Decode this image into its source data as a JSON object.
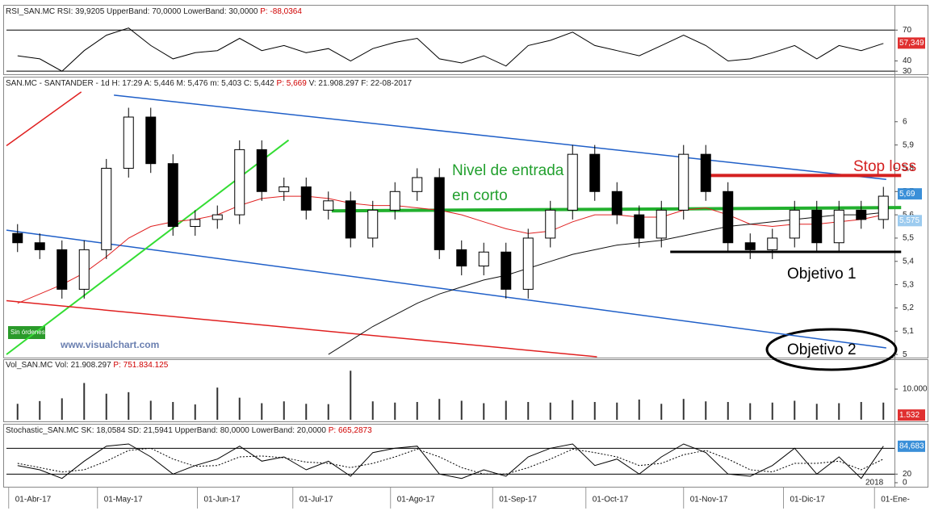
{
  "chart_data": [
    {
      "type": "line",
      "title": "RSI_SAN.MC  RSI: 39,9205  UpperBand: 70,0000  LowerBand: 30,0000",
      "title_p": "P: -88,0364",
      "xlim": [
        0,
        40
      ],
      "ylim": [
        27,
        82
      ],
      "yticks": [
        70,
        40,
        30
      ],
      "bands": [
        70,
        30
      ],
      "marker": {
        "value": 57.349,
        "label": "57,349",
        "color": "#e03030"
      },
      "series": [
        {
          "name": "RSI",
          "color": "#000000",
          "values": [
            45,
            42,
            30,
            50,
            65,
            72,
            55,
            42,
            48,
            50,
            62,
            50,
            55,
            48,
            52,
            40,
            52,
            58,
            62,
            42,
            38,
            45,
            35,
            55,
            60,
            68,
            55,
            50,
            45,
            55,
            65,
            55,
            40,
            42,
            48,
            55,
            42,
            55,
            50,
            57
          ]
        }
      ]
    },
    {
      "type": "candlestick",
      "title": "SAN.MC - SANTANDER - 1d H: 17:29 A: 5,446 M: 5,476 m: 5,403 C: 5,442",
      "title_p": "P: 5,669",
      "title_tail": "V: 21.908.297 F: 22-08-2017",
      "xlim": [
        0,
        40
      ],
      "ylim": [
        4.99,
        6.19
      ],
      "yticks": [
        6,
        {
          "value": 5.9,
          "label": "5,9"
        },
        {
          "value": 5.8,
          "label": "5,8"
        },
        {
          "value": 5.7,
          "label": "5,7"
        },
        {
          "value": 5.6,
          "label": "5,6"
        },
        {
          "value": 5.5,
          "label": "5,5"
        },
        {
          "value": 5.4,
          "label": "5,4"
        },
        {
          "value": 5.3,
          "label": "5,3"
        },
        {
          "value": 5.2,
          "label": "5,2"
        },
        {
          "value": 5.1,
          "label": "5,1"
        },
        5
      ],
      "open": [
        5.52,
        5.48,
        5.45,
        5.28,
        5.45,
        5.8,
        6.02,
        5.82,
        5.55,
        5.58,
        5.6,
        5.88,
        5.7,
        5.72,
        5.62,
        5.66,
        5.5,
        5.62,
        5.7,
        5.76,
        5.45,
        5.38,
        5.44,
        5.28,
        5.5,
        5.62,
        5.86,
        5.7,
        5.6,
        5.5,
        5.62,
        5.86,
        5.7,
        5.48,
        5.45,
        5.5,
        5.62,
        5.48,
        5.62,
        5.58
      ],
      "high": [
        5.56,
        5.52,
        5.49,
        5.49,
        5.84,
        6.06,
        6.06,
        5.86,
        5.62,
        5.64,
        5.92,
        5.92,
        5.76,
        5.76,
        5.7,
        5.7,
        5.66,
        5.74,
        5.8,
        5.8,
        5.49,
        5.48,
        5.48,
        5.54,
        5.66,
        5.9,
        5.9,
        5.74,
        5.64,
        5.66,
        5.9,
        5.9,
        5.74,
        5.52,
        5.54,
        5.66,
        5.66,
        5.66,
        5.66,
        5.72
      ],
      "low": [
        5.44,
        5.41,
        5.24,
        5.24,
        5.41,
        5.76,
        5.78,
        5.51,
        5.51,
        5.54,
        5.56,
        5.66,
        5.66,
        5.58,
        5.58,
        5.46,
        5.46,
        5.58,
        5.66,
        5.41,
        5.34,
        5.34,
        5.24,
        5.24,
        5.46,
        5.58,
        5.66,
        5.56,
        5.46,
        5.46,
        5.58,
        5.66,
        5.44,
        5.41,
        5.41,
        5.46,
        5.44,
        5.44,
        5.54,
        5.54
      ],
      "close": [
        5.48,
        5.45,
        5.28,
        5.45,
        5.8,
        6.02,
        5.82,
        5.55,
        5.58,
        5.6,
        5.88,
        5.7,
        5.72,
        5.62,
        5.66,
        5.5,
        5.62,
        5.7,
        5.76,
        5.45,
        5.38,
        5.44,
        5.28,
        5.5,
        5.62,
        5.86,
        5.7,
        5.6,
        5.5,
        5.62,
        5.86,
        5.7,
        5.48,
        5.45,
        5.5,
        5.62,
        5.48,
        5.62,
        5.58,
        5.68
      ],
      "averages": [
        {
          "color": "#e02020",
          "values": [
            5.22,
            5.26,
            5.3,
            5.35,
            5.42,
            5.5,
            5.55,
            5.57,
            5.58,
            5.6,
            5.64,
            5.67,
            5.68,
            5.68,
            5.67,
            5.65,
            5.64,
            5.64,
            5.63,
            5.62,
            5.6,
            5.57,
            5.54,
            5.52,
            5.53,
            5.57,
            5.6,
            5.6,
            5.59,
            5.59,
            5.62,
            5.63,
            5.6,
            5.56,
            5.55,
            5.56,
            5.56,
            5.57,
            5.58,
            5.6
          ]
        },
        {
          "color": "#111111",
          "values": [
            null,
            null,
            null,
            null,
            null,
            null,
            null,
            null,
            null,
            null,
            null,
            null,
            null,
            null,
            5.0,
            5.06,
            5.12,
            5.17,
            5.22,
            5.26,
            5.29,
            5.32,
            5.34,
            5.37,
            5.4,
            5.43,
            5.45,
            5.47,
            5.48,
            5.49,
            5.51,
            5.53,
            5.55,
            5.56,
            5.57,
            5.58,
            5.59,
            5.6,
            5.6,
            5.61
          ]
        }
      ],
      "lines": [
        {
          "color": "#1f5fc8",
          "width": 1.5,
          "points": [
            [
              4.84,
              6.114
            ],
            [
              39.63,
              5.752
            ]
          ]
        },
        {
          "color": "#1f5fc8",
          "width": 1.5,
          "points": [
            [
              0,
              5.534
            ],
            [
              39.63,
              5.028
            ]
          ]
        },
        {
          "color": "#33dd33",
          "width": 2,
          "points": [
            [
              0,
              5.0
            ],
            [
              12.71,
              5.921
            ]
          ]
        },
        {
          "color": "#e02020",
          "width": 1.5,
          "points": [
            [
              0,
              5.231
            ],
            [
              26.6,
              4.99
            ]
          ]
        },
        {
          "color": "#e02020",
          "width": 1.5,
          "points": [
            [
              0,
              5.897
            ],
            [
              3.37,
              6.128
            ]
          ]
        },
        {
          "color": "#22b02e",
          "width": 4,
          "points": [
            [
              14.65,
              5.617
            ],
            [
              40.3,
              5.631
            ]
          ]
        },
        {
          "color": "#d42020",
          "width": 4,
          "points": [
            [
              31.3,
              5.769
            ],
            [
              40.3,
              5.769
            ]
          ]
        },
        {
          "color": "#000000",
          "width": 3,
          "points": [
            [
              29.9,
              5.441
            ],
            [
              40.3,
              5.441
            ]
          ]
        }
      ],
      "markers": [
        {
          "value": 5.69,
          "label": "5,69",
          "color": "#3a8fd8"
        },
        {
          "value": 5.575,
          "label": "5,575",
          "color": "#9ccbef"
        }
      ],
      "annotations": [
        "Nivel de entrada",
        "en corto",
        "Stop loss",
        "Objetivo 1",
        "Objetivo 2",
        "www.visualchart.com",
        "Sin órdenes"
      ]
    },
    {
      "type": "bar",
      "title": "Vol_SAN.MC  Vol: 21.908.297",
      "title_p": "P: 751.834.125",
      "xlim": [
        0,
        40
      ],
      "ylim": [
        0,
        19500
      ],
      "yticks": [
        {
          "value": 10000,
          "label": "10.000"
        }
      ],
      "marker": {
        "value": 1532,
        "label": "1.532",
        "color": "#e03030"
      },
      "color": "#333333",
      "values": [
        5200,
        6100,
        7000,
        12000,
        8500,
        9000,
        6200,
        5800,
        5000,
        10500,
        7200,
        5400,
        6000,
        5200,
        5100,
        16000,
        6000,
        5600,
        5800,
        6800,
        6200,
        5400,
        6200,
        5800,
        5600,
        6400,
        5800,
        5600,
        6600,
        5200,
        6800,
        6000,
        5800,
        5400,
        5600,
        6200,
        5200,
        5400,
        5800,
        5600
      ]
    },
    {
      "type": "line",
      "title": "Stochastic_SAN.MC  SK: 18,0584  SD: 21,5941  UpperBand: 80,0000  LowerBand: 20,0000",
      "title_p": "P: 665,2873",
      "xlim": [
        0,
        40
      ],
      "ylim": [
        0,
        105
      ],
      "yticks": [
        20,
        0
      ],
      "bands": [
        80,
        20
      ],
      "marker": {
        "value": 84.683,
        "label": "84,683",
        "color": "#3a8fd8"
      },
      "xticks": [
        {
          "value": 0.1,
          "label": "01-Abr-17"
        },
        {
          "value": 4.1,
          "label": "01-May-17"
        },
        {
          "value": 8.6,
          "label": "01-Jun-17"
        },
        {
          "value": 12.9,
          "label": "01-Jul-17"
        },
        {
          "value": 17.3,
          "label": "01-Ago-17"
        },
        {
          "value": 21.9,
          "label": "01-Sep-17"
        },
        {
          "value": 26.1,
          "label": "01-Oct-17"
        },
        {
          "value": 30.5,
          "label": "01-Nov-17"
        },
        {
          "value": 35.0,
          "label": "01-Dic-17"
        },
        {
          "value": 39.1,
          "label": "01-Ene-"
        }
      ],
      "year_label": "2018",
      "series": [
        {
          "name": "SK",
          "color": "#000000",
          "values": [
            40,
            30,
            10,
            50,
            85,
            90,
            60,
            20,
            40,
            55,
            85,
            50,
            60,
            30,
            50,
            15,
            70,
            80,
            85,
            20,
            10,
            30,
            15,
            60,
            80,
            90,
            40,
            55,
            20,
            60,
            90,
            70,
            20,
            15,
            40,
            80,
            20,
            60,
            10,
            85
          ]
        },
        {
          "name": "SD",
          "color": "#000000",
          "dash": true,
          "values": [
            45,
            35,
            25,
            30,
            50,
            75,
            80,
            55,
            38,
            40,
            60,
            62,
            58,
            48,
            45,
            35,
            45,
            60,
            78,
            60,
            35,
            20,
            20,
            35,
            55,
            78,
            70,
            60,
            40,
            45,
            65,
            75,
            55,
            30,
            25,
            45,
            45,
            50,
            30,
            55
          ]
        }
      ]
    }
  ]
}
